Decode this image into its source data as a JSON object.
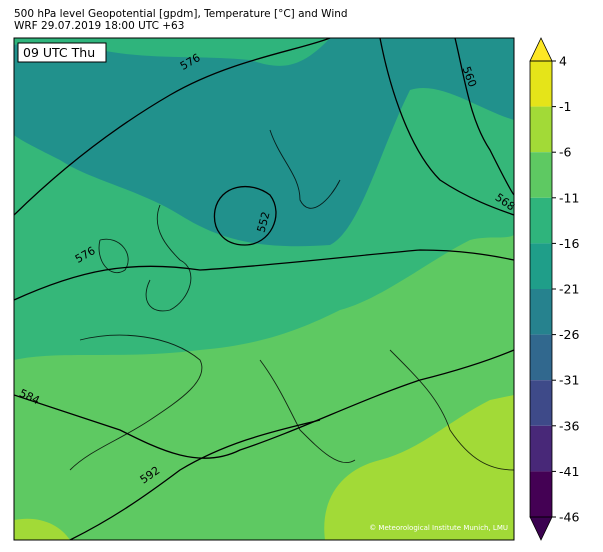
{
  "header": {
    "title": "500 hPa level Geopotential [gpdm], Temperature [°C] and Wind",
    "subtitle": "WRF 29.07.2019 18:00 UTC +63"
  },
  "time_label": "09 UTC Thu",
  "contour_labels": [
    576,
    560,
    568,
    552,
    576,
    584,
    592
  ],
  "colorbar": {
    "ticks": [
      4,
      -1,
      -6,
      -11,
      -16,
      -21,
      -26,
      -31,
      -36,
      -41,
      -46
    ],
    "colors": [
      "#e5e419",
      "#a2da37",
      "#5ec962",
      "#2fb47c",
      "#1f9e89",
      "#26828e",
      "#31688e",
      "#3e4a89",
      "#482878",
      "#440154"
    ],
    "over_color": "#fde725",
    "under_color": "#3b0250"
  },
  "credit": "© Meteorological Institute Munich, LMU"
}
